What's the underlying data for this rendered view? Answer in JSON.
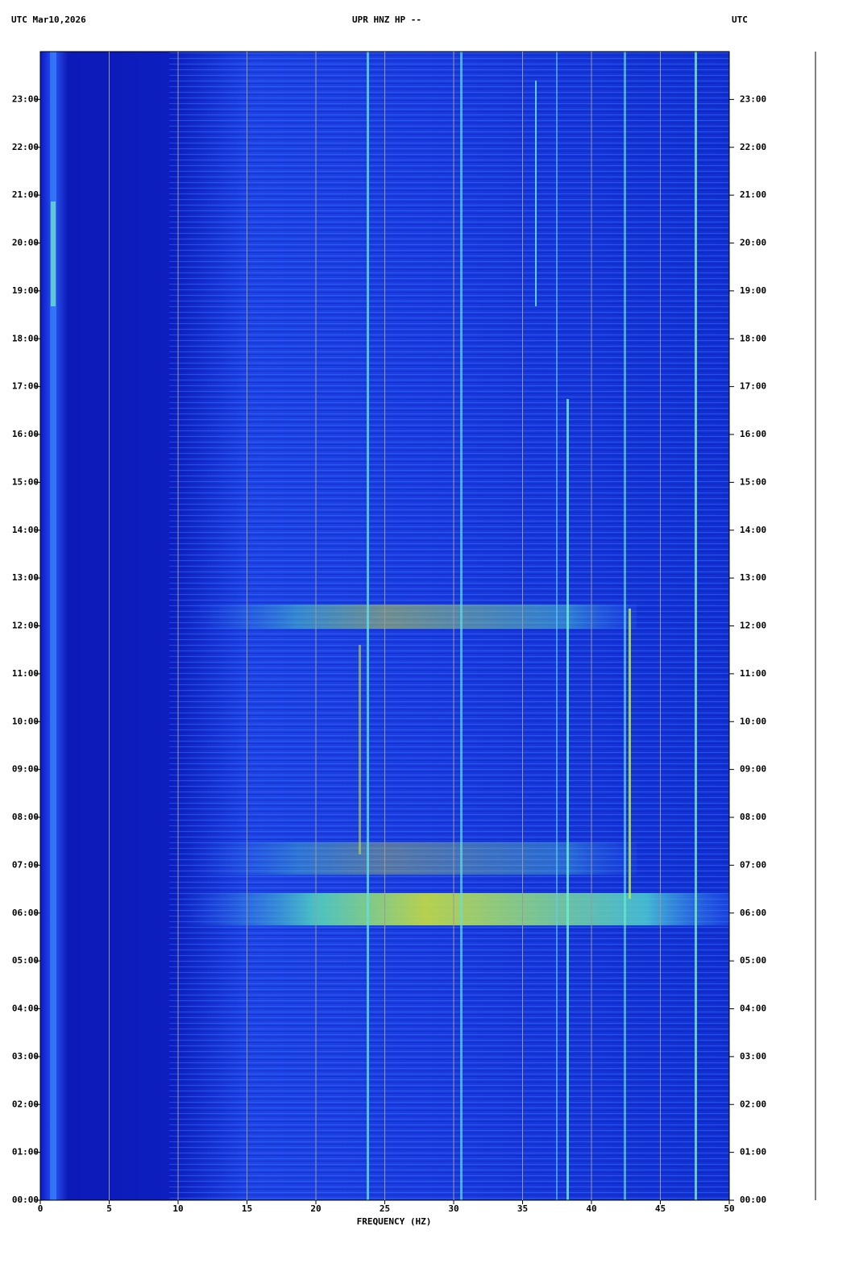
{
  "chart_data": {
    "type": "spectrogram",
    "title": "UPR HNZ HP --",
    "subtitle": "UTC  Mar10,2026",
    "right_label": "UTC",
    "xlabel": "FREQUENCY (HZ)",
    "xlim": [
      0,
      50
    ],
    "xticks": [
      0,
      5,
      10,
      15,
      20,
      25,
      30,
      35,
      40,
      45,
      50
    ],
    "ylim": [
      0,
      24
    ],
    "yticks": [
      {
        "value": 0,
        "label": "00:00"
      },
      {
        "value": 1,
        "label": "01:00"
      },
      {
        "value": 2,
        "label": "02:00"
      },
      {
        "value": 3,
        "label": "03:00"
      },
      {
        "value": 4,
        "label": "04:00"
      },
      {
        "value": 5,
        "label": "05:00"
      },
      {
        "value": 6,
        "label": "06:00"
      },
      {
        "value": 7,
        "label": "07:00"
      },
      {
        "value": 8,
        "label": "08:00"
      },
      {
        "value": 9,
        "label": "09:00"
      },
      {
        "value": 10,
        "label": "10:00"
      },
      {
        "value": 11,
        "label": "11:00"
      },
      {
        "value": 12,
        "label": "12:00"
      },
      {
        "value": 13,
        "label": "13:00"
      },
      {
        "value": 14,
        "label": "14:00"
      },
      {
        "value": 15,
        "label": "15:00"
      },
      {
        "value": 16,
        "label": "16:00"
      },
      {
        "value": 17,
        "label": "17:00"
      },
      {
        "value": 18,
        "label": "18:00"
      },
      {
        "value": 19,
        "label": "19:00"
      },
      {
        "value": 20,
        "label": "20:00"
      },
      {
        "value": 21,
        "label": "21:00"
      },
      {
        "value": 22,
        "label": "22:00"
      },
      {
        "value": 23,
        "label": "23:00"
      }
    ],
    "grid": true
  }
}
